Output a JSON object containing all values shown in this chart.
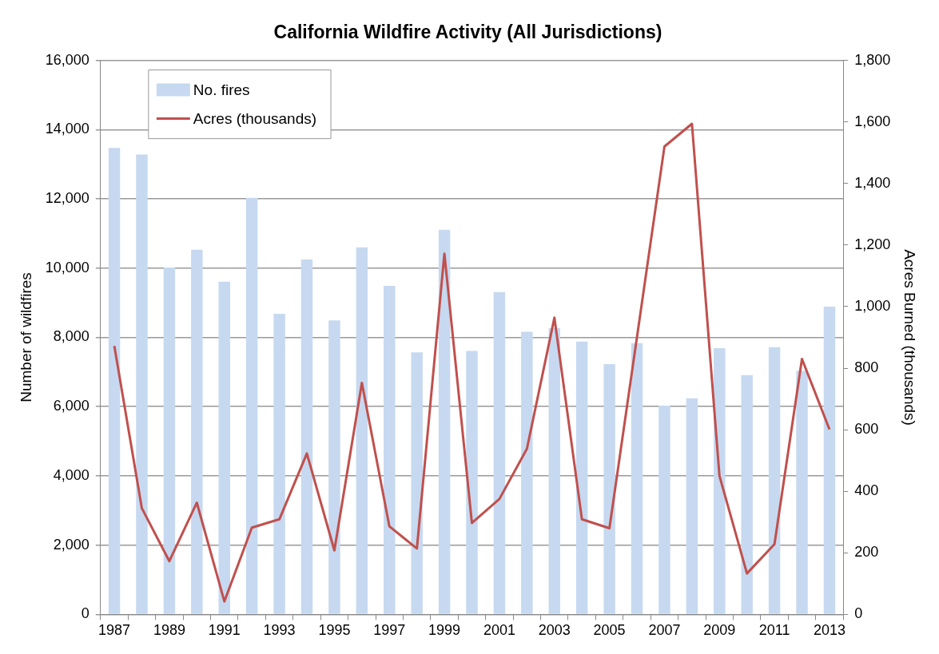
{
  "chart_data": {
    "type": "bar",
    "title": "California Wildfire Activity (All Jurisdictions)",
    "ylabel": "Number of wildfires",
    "y2label": "Acres Burned (thousands)",
    "categories": [
      "1987",
      null,
      "1989",
      null,
      "1991",
      null,
      "1993",
      null,
      "1995",
      null,
      "1997",
      null,
      "1999",
      null,
      "2001",
      null,
      "2003",
      null,
      "2005",
      null,
      "2007",
      null,
      "2009",
      null,
      "2011",
      null,
      "2013"
    ],
    "series": [
      {
        "name": "No. fires",
        "color": "#c6d9f0",
        "values": [
          13470,
          13280,
          10020,
          10530,
          9610,
          12030,
          8680,
          10250,
          8490,
          10600,
          9490,
          7570,
          11110,
          7610,
          9310,
          8160,
          8270,
          7880,
          7230,
          7830,
          6030,
          6240,
          7690,
          6910,
          7720,
          7040,
          8890
        ]
      },
      {
        "name": "Acres (thousands)",
        "type": "line",
        "axis": "y2",
        "color": "#c0504d",
        "values": [
          872,
          345,
          173,
          363,
          42,
          282,
          309,
          523,
          208,
          752,
          286,
          214,
          1172,
          297,
          375,
          538,
          964,
          309,
          280,
          900,
          1520,
          1594,
          450,
          133,
          228,
          830,
          601
        ]
      }
    ],
    "ylim": [
      0,
      16000
    ],
    "yticks": [
      0,
      {
        "value": 2000,
        "label": "2,000"
      },
      {
        "value": 4000,
        "label": "4,000"
      },
      {
        "value": 6000,
        "label": "6,000"
      },
      {
        "value": 8000,
        "label": "8,000"
      },
      {
        "value": 10000,
        "label": "10,000"
      },
      {
        "value": 12000,
        "label": "12,000"
      },
      {
        "value": 14000,
        "label": "14,000"
      },
      {
        "value": 16000,
        "label": "16,000"
      }
    ],
    "y2lim": [
      0,
      1800
    ],
    "y2ticks": [
      0,
      200,
      400,
      600,
      800,
      {
        "value": 1000,
        "label": "1,000"
      },
      {
        "value": 1200,
        "label": "1,200"
      },
      {
        "value": 1400,
        "label": "1,400"
      },
      {
        "value": 1600,
        "label": "1,600"
      },
      {
        "value": 1800,
        "label": "1,800"
      }
    ],
    "grid": "y",
    "legend": "top left",
    "marker": "none",
    "line_style": "solid"
  }
}
